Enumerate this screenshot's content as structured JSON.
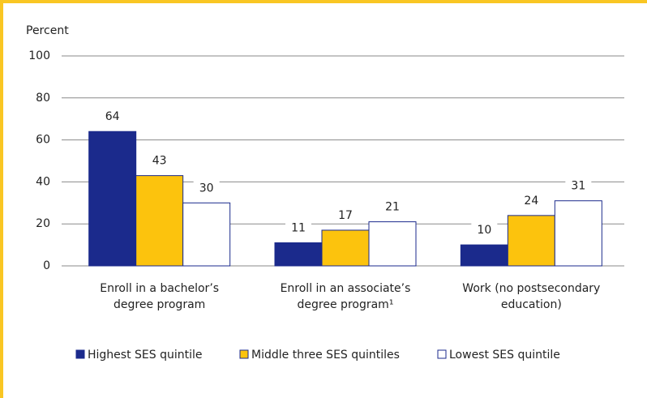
{
  "chart_data": {
    "type": "bar",
    "y_label": "Percent",
    "categories": [
      [
        "Enroll in a bachelor’s",
        "degree program"
      ],
      [
        "Enroll in an associate’s",
        "degree program¹"
      ],
      [
        "Work (no postsecondary",
        "education)"
      ]
    ],
    "series": [
      {
        "name": "Highest SES quintile",
        "color": "#1b2a8c",
        "values": [
          64,
          11,
          10
        ]
      },
      {
        "name": "Middle three SES quintiles",
        "color": "#fcc30d",
        "values": [
          43,
          17,
          24
        ]
      },
      {
        "name": "Lowest SES quintile",
        "color": "#ffffff",
        "values": [
          30,
          21,
          31
        ]
      }
    ],
    "ylim": [
      0,
      100
    ],
    "yticks": [
      0,
      20,
      40,
      60,
      80,
      100
    ],
    "grid": true
  }
}
